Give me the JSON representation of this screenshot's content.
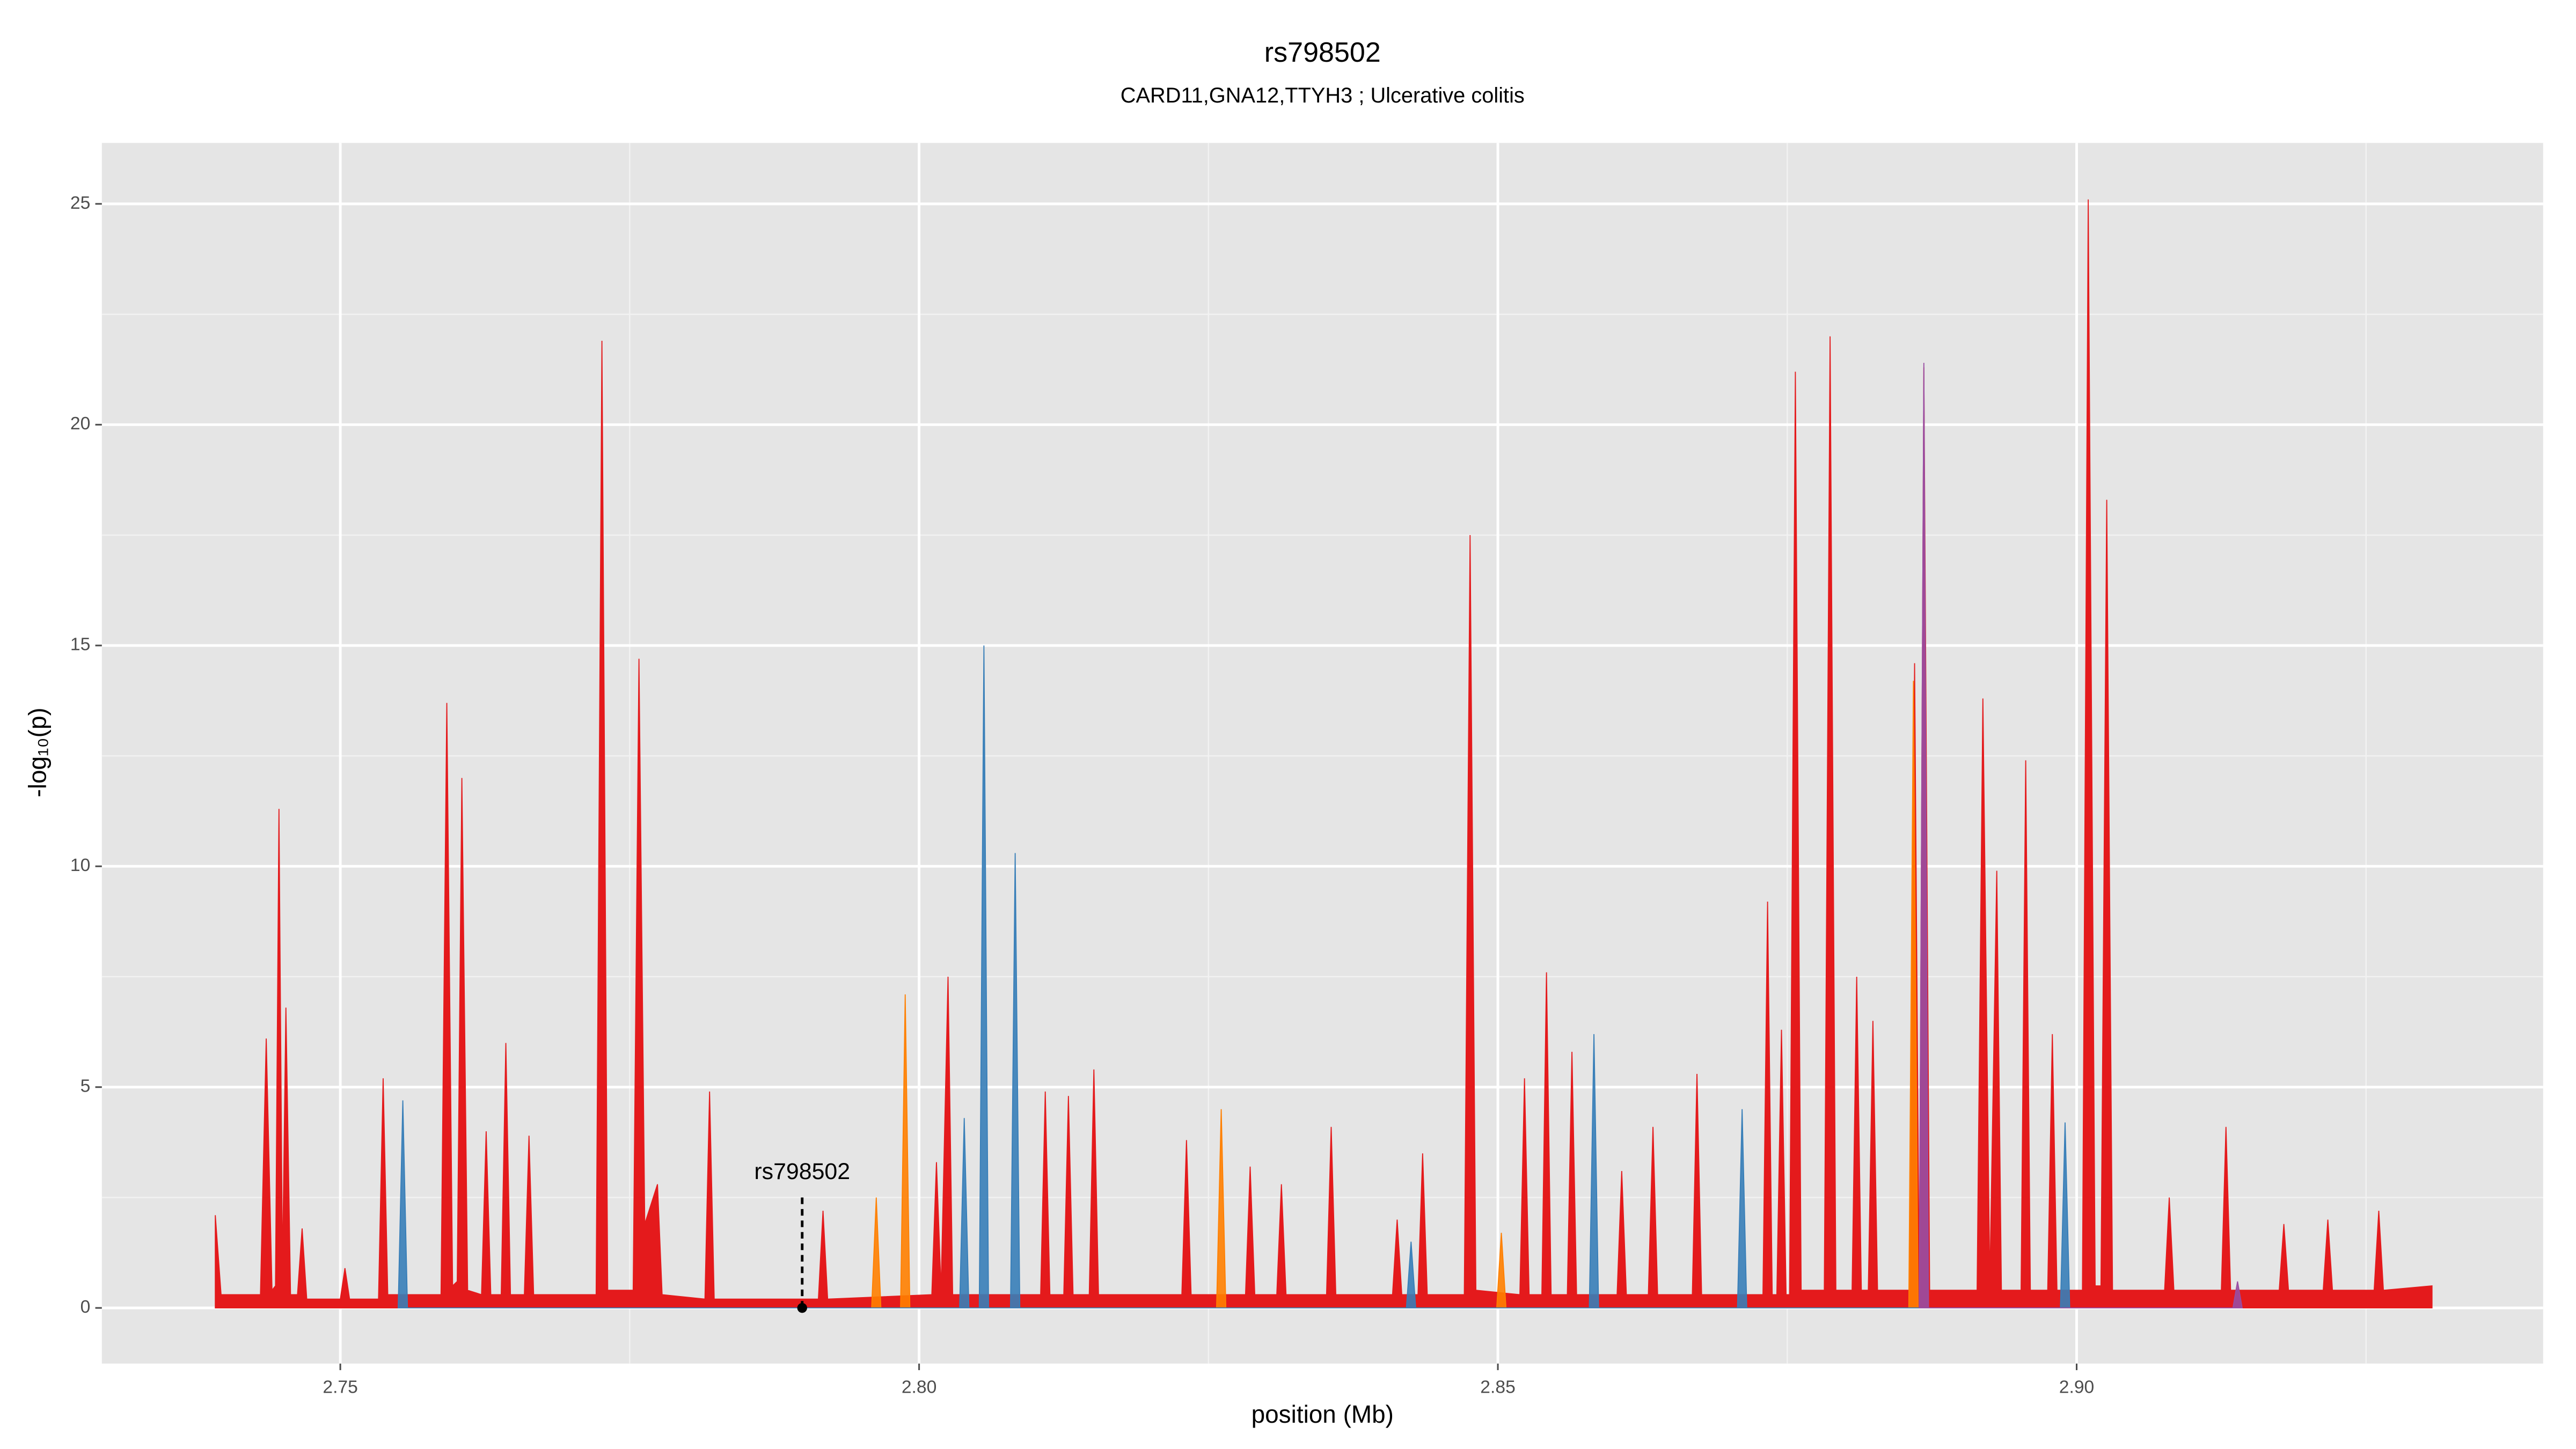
{
  "chart_data": {
    "type": "area",
    "title": "rs798502",
    "subtitle": "CARD11,GNA12,TTYH3 ; Ulcerative colitis",
    "xlabel": "position (Mb)",
    "ylabel": "-log₁₀(p)",
    "xlim": [
      2.7294,
      2.9403
    ],
    "ylim": [
      -1.26,
      26.38
    ],
    "xticks": [
      2.75,
      {
        "value": 2.8,
        "label": "2.80"
      },
      2.85,
      {
        "value": 2.9,
        "label": "2.90"
      }
    ],
    "yticks": [
      0,
      5,
      10,
      15,
      20,
      25
    ],
    "grid": true,
    "annotation": {
      "text": "rs798502",
      "x": 2.7899,
      "y": 0,
      "label_y": 2.5
    },
    "series": [
      {
        "name": "red",
        "color": "#e41a1c",
        "x": [
          2.7392,
          2.7397,
          2.7431,
          2.7436,
          2.7441,
          2.7444,
          2.7447,
          2.745,
          2.7453,
          2.7457,
          2.7463,
          2.7467,
          2.7471,
          2.75,
          2.7504,
          2.7508,
          2.7533,
          2.7537,
          2.7541,
          2.7587,
          2.7592,
          2.7597,
          2.7601,
          2.7605,
          2.761,
          2.7622,
          2.7626,
          2.763,
          2.7639,
          2.7643,
          2.7647,
          2.7659,
          2.7663,
          2.7667,
          2.7721,
          2.7726,
          2.7731,
          2.7753,
          2.7758,
          2.7763,
          2.7774,
          2.7778,
          2.7815,
          2.7819,
          2.7823,
          2.7913,
          2.7917,
          2.7921,
          2.8011,
          2.8015,
          2.8019,
          2.8025,
          2.8029,
          2.8105,
          2.8109,
          2.8113,
          2.8125,
          2.8129,
          2.8133,
          2.8147,
          2.8151,
          2.8155,
          2.8227,
          2.8231,
          2.8235,
          2.8282,
          2.8286,
          2.829,
          2.8309,
          2.8313,
          2.8317,
          2.8352,
          2.8356,
          2.836,
          2.8409,
          2.8413,
          2.8417,
          2.8431,
          2.8435,
          2.8439,
          2.8471,
          2.8476,
          2.8481,
          2.8519,
          2.8523,
          2.8527,
          2.8538,
          2.8542,
          2.8546,
          2.856,
          2.8564,
          2.8568,
          2.8603,
          2.8607,
          2.8611,
          2.863,
          2.8634,
          2.8638,
          2.8668,
          2.8672,
          2.8676,
          2.8729,
          2.8733,
          2.8737,
          2.8741,
          2.8745,
          2.8749,
          2.8752,
          2.8757,
          2.8762,
          2.8782,
          2.8787,
          2.8792,
          2.8806,
          2.881,
          2.8814,
          2.882,
          2.8824,
          2.8828,
          2.8856,
          2.886,
          2.8864,
          2.8868,
          2.8873,
          2.8914,
          2.8919,
          2.8925,
          2.8931,
          2.8935,
          2.8952,
          2.8956,
          2.896,
          2.8975,
          2.8979,
          2.8983,
          2.9005,
          2.901,
          2.9016,
          2.9021,
          2.9026,
          2.9031,
          2.9076,
          2.908,
          2.9084,
          2.9125,
          2.9129,
          2.9133,
          2.9175,
          2.9179,
          2.9183,
          2.9213,
          2.9217,
          2.9221,
          2.9257,
          2.9261,
          2.9265,
          2.9307
        ],
        "values": [
          2.1,
          0.3,
          0.3,
          6.1,
          0.4,
          0.5,
          11.3,
          0.8,
          6.8,
          0.3,
          0.3,
          1.8,
          0.2,
          0.2,
          0.9,
          0.2,
          0.2,
          5.2,
          0.3,
          0.3,
          13.7,
          0.5,
          0.6,
          12,
          0.4,
          0.3,
          4,
          0.3,
          0.3,
          6,
          0.3,
          0.3,
          3.9,
          0.3,
          0.3,
          21.9,
          0.4,
          0.4,
          14.7,
          1.9,
          2.8,
          0.3,
          0.2,
          4.9,
          0.2,
          0.2,
          2.2,
          0.2,
          0.3,
          3.3,
          0.4,
          7.5,
          0.3,
          0.3,
          4.9,
          0.3,
          0.3,
          4.8,
          0.3,
          0.3,
          5.4,
          0.3,
          0.3,
          3.8,
          0.3,
          0.3,
          3.2,
          0.3,
          0.3,
          2.8,
          0.3,
          0.3,
          4.1,
          0.3,
          0.3,
          2,
          0.3,
          0.3,
          3.5,
          0.3,
          0.3,
          17.5,
          0.4,
          0.3,
          5.2,
          0.3,
          0.3,
          7.6,
          0.3,
          0.3,
          5.8,
          0.3,
          0.3,
          3.1,
          0.3,
          0.3,
          4.1,
          0.3,
          0.3,
          5.3,
          0.3,
          0.3,
          9.2,
          0.3,
          0.3,
          6.3,
          0.3,
          0.3,
          21.2,
          0.4,
          0.4,
          22,
          0.4,
          0.4,
          7.5,
          0.4,
          0.4,
          6.5,
          0.4,
          0.4,
          14.6,
          0.4,
          21.3,
          0.4,
          0.4,
          13.8,
          0.5,
          9.9,
          0.4,
          0.4,
          12.4,
          0.4,
          0.4,
          6.2,
          0.4,
          0.4,
          25.1,
          0.5,
          0.5,
          18.3,
          0.4,
          0.4,
          2.5,
          0.4,
          0.4,
          4.1,
          0.4,
          0.4,
          1.9,
          0.4,
          0.4,
          2.0,
          0.4,
          0.4,
          2.2,
          0.4,
          0.5
        ]
      },
      {
        "name": "orange",
        "color": "#ff7f00",
        "x": [
          2.7959,
          2.7963,
          2.7967,
          2.7984,
          2.7988,
          2.7992,
          2.8257,
          2.8261,
          2.8265,
          2.8499,
          2.8503,
          2.8507,
          2.8855,
          2.8859,
          2.8863
        ],
        "values": [
          0,
          2.5,
          0,
          0,
          7.1,
          0,
          0,
          4.5,
          0,
          0,
          1.7,
          0,
          0,
          14.2,
          0
        ]
      },
      {
        "name": "blue",
        "color": "#377eb8",
        "x": [
          2.755,
          2.7554,
          2.7558,
          2.8035,
          2.8039,
          2.8043,
          2.8052,
          2.8056,
          2.806,
          2.8079,
          2.8083,
          2.8087,
          2.8421,
          2.8425,
          2.8429,
          2.8579,
          2.8583,
          2.8587,
          2.8707,
          2.8711,
          2.8715,
          2.8986,
          2.899,
          2.8994
        ],
        "values": [
          0,
          4.7,
          0,
          0,
          4.3,
          0,
          0,
          15,
          0,
          0,
          10.3,
          0,
          0,
          1.5,
          0,
          0,
          6.2,
          0,
          0,
          4.5,
          0,
          0,
          4.2,
          0
        ]
      },
      {
        "name": "purple",
        "color": "#984ea3",
        "x": [
          2.8864,
          2.8868,
          2.8872,
          2.9135,
          2.9139,
          2.9143
        ],
        "values": [
          0,
          21.4,
          0,
          0,
          0.6,
          0
        ]
      }
    ]
  }
}
